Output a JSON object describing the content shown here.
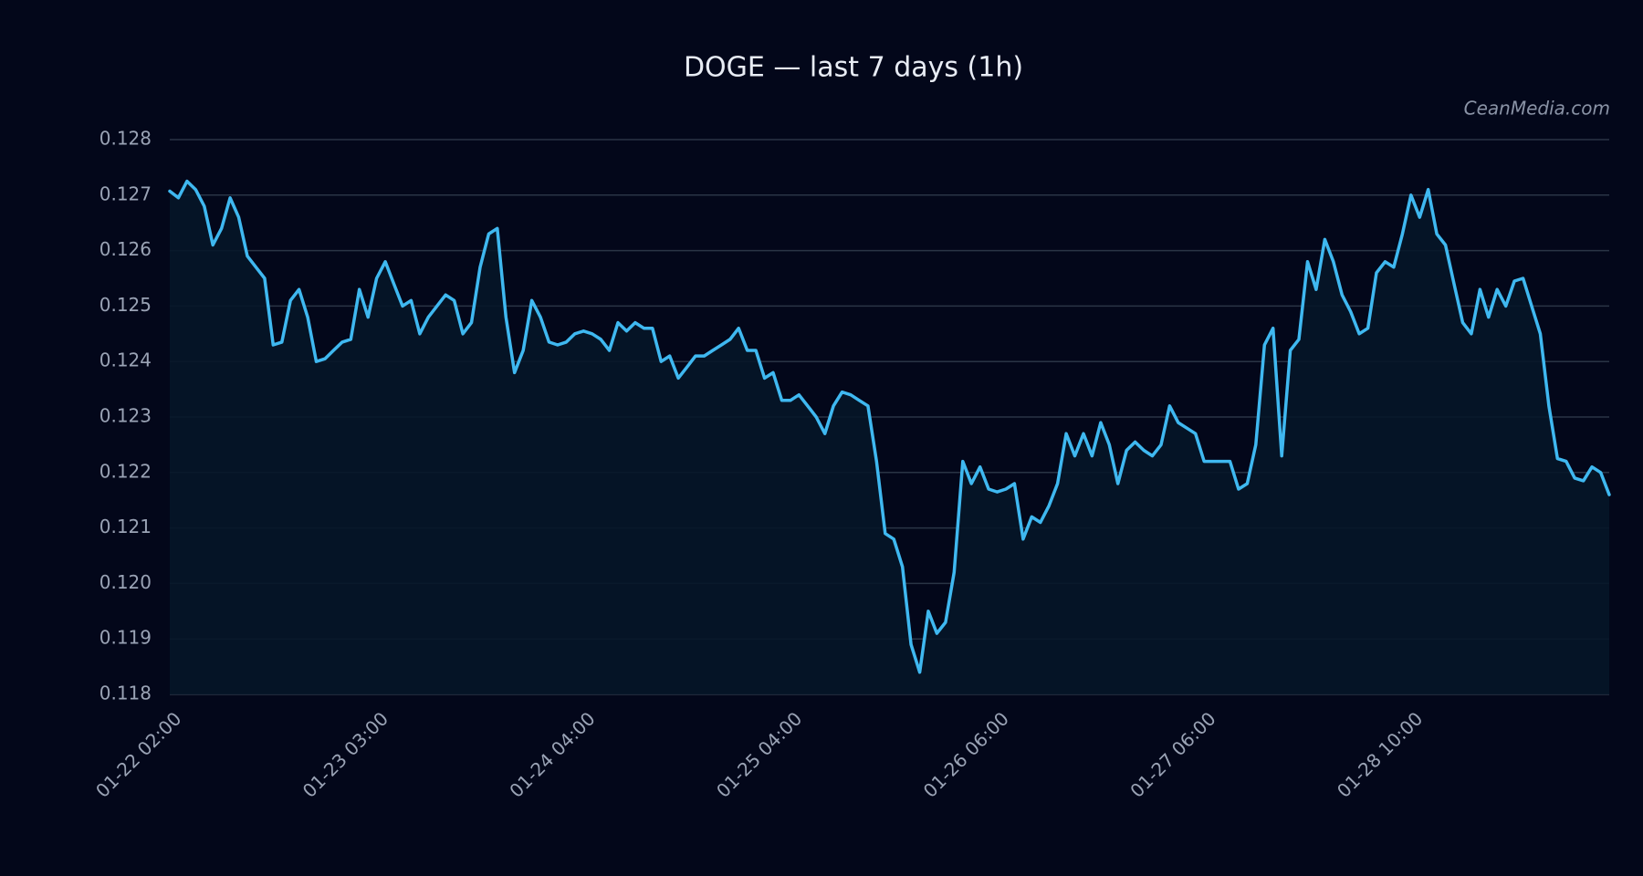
{
  "chart_data": {
    "type": "line",
    "title": "DOGE — last 7 days (1h)",
    "annotation": "CeanMedia.com",
    "categories": [
      "01-22 02:00",
      null,
      null,
      null,
      null,
      null,
      null,
      null,
      null,
      null,
      null,
      null,
      null,
      null,
      null,
      null,
      null,
      null,
      null,
      null,
      null,
      null,
      null,
      null,
      "01-23 03:00",
      null,
      null,
      null,
      null,
      null,
      null,
      null,
      null,
      null,
      null,
      null,
      null,
      null,
      null,
      null,
      null,
      null,
      null,
      null,
      null,
      null,
      null,
      null,
      "01-24 04:00",
      null,
      null,
      null,
      null,
      null,
      null,
      null,
      null,
      null,
      null,
      null,
      null,
      null,
      null,
      null,
      null,
      null,
      null,
      null,
      null,
      null,
      null,
      null,
      "01-25 04:00",
      null,
      null,
      null,
      null,
      null,
      null,
      null,
      null,
      null,
      null,
      null,
      null,
      null,
      null,
      null,
      null,
      null,
      null,
      null,
      null,
      null,
      null,
      null,
      "01-26 06:00",
      null,
      null,
      null,
      null,
      null,
      null,
      null,
      null,
      null,
      null,
      null,
      null,
      null,
      null,
      null,
      null,
      null,
      null,
      null,
      null,
      null,
      null,
      null,
      "01-27 06:00",
      null,
      null,
      null,
      null,
      null,
      null,
      null,
      null,
      null,
      null,
      null,
      null,
      null,
      null,
      null,
      null,
      null,
      null,
      null,
      null,
      null,
      null,
      null,
      "01-28 10:00",
      null,
      null,
      null,
      null,
      null,
      null,
      null,
      null,
      null,
      null,
      null,
      null,
      null,
      null,
      null,
      null,
      null,
      null,
      null,
      null,
      null,
      null,
      null
    ],
    "series": [
      {
        "color": "#3fb8f0",
        "fill": "#061628",
        "values": [
          0.12707,
          0.12695,
          0.12725,
          0.1271,
          0.1268,
          0.1261,
          0.1264,
          0.12695,
          0.1266,
          0.1259,
          0.1257,
          0.1255,
          0.1243,
          0.12435,
          0.1251,
          0.1253,
          0.1248,
          0.124,
          0.12405,
          0.1242,
          0.12435,
          0.1244,
          0.1253,
          0.1248,
          0.1255,
          0.1258,
          0.1254,
          0.125,
          0.1251,
          0.1245,
          0.1248,
          0.125,
          0.1252,
          0.1251,
          0.1245,
          0.1247,
          0.1257,
          0.1263,
          0.1264,
          0.1248,
          0.1238,
          0.1242,
          0.1251,
          0.1248,
          0.12435,
          0.1243,
          0.12435,
          0.1245,
          0.12455,
          0.1245,
          0.1244,
          0.1242,
          0.1247,
          0.12455,
          0.1247,
          0.1246,
          0.1246,
          0.124,
          0.1241,
          0.1237,
          0.1239,
          0.1241,
          0.1241,
          0.1242,
          0.1243,
          0.1244,
          0.1246,
          0.1242,
          0.1242,
          0.1237,
          0.1238,
          0.1233,
          0.1233,
          0.1234,
          0.1232,
          0.123,
          0.1227,
          0.1232,
          0.12345,
          0.1234,
          0.1233,
          0.1232,
          0.1222,
          0.1209,
          0.1208,
          0.1203,
          0.1189,
          0.1184,
          0.1195,
          0.1191,
          0.1193,
          0.1202,
          0.1222,
          0.1218,
          0.1221,
          0.1217,
          0.12165,
          0.1217,
          0.1218,
          0.1208,
          0.1212,
          0.1211,
          0.1214,
          0.1218,
          0.1227,
          0.1223,
          0.1227,
          0.1223,
          0.1229,
          0.1225,
          0.1218,
          0.1224,
          0.12255,
          0.1224,
          0.1223,
          0.1225,
          0.1232,
          0.1229,
          0.1228,
          0.1227,
          0.1222,
          0.1222,
          0.1222,
          0.1222,
          0.1217,
          0.1218,
          0.1225,
          0.1243,
          0.1246,
          0.1223,
          0.1242,
          0.1244,
          0.1258,
          0.1253,
          0.1262,
          0.1258,
          0.1252,
          0.1249,
          0.1245,
          0.1246,
          0.1256,
          0.1258,
          0.1257,
          0.1263,
          0.127,
          0.1266,
          0.1271,
          0.1263,
          0.1261,
          0.1254,
          0.1247,
          0.1245,
          0.1253,
          0.1248,
          0.1253,
          0.125,
          0.12545,
          0.1255,
          0.125,
          0.1245,
          0.1232,
          0.12225,
          0.1222,
          0.1219,
          0.12185,
          0.1221,
          0.122,
          0.1216
        ]
      }
    ],
    "ylim": [
      0.118,
      0.128
    ],
    "yticks": [
      0.118,
      0.119,
      {
        "value": 0.12,
        "label": "0.120"
      },
      0.121,
      0.122,
      0.123,
      0.124,
      0.125,
      0.126,
      0.127,
      0.128
    ],
    "grid": true,
    "grid_color": "#2a3445",
    "background": "#03071a"
  }
}
